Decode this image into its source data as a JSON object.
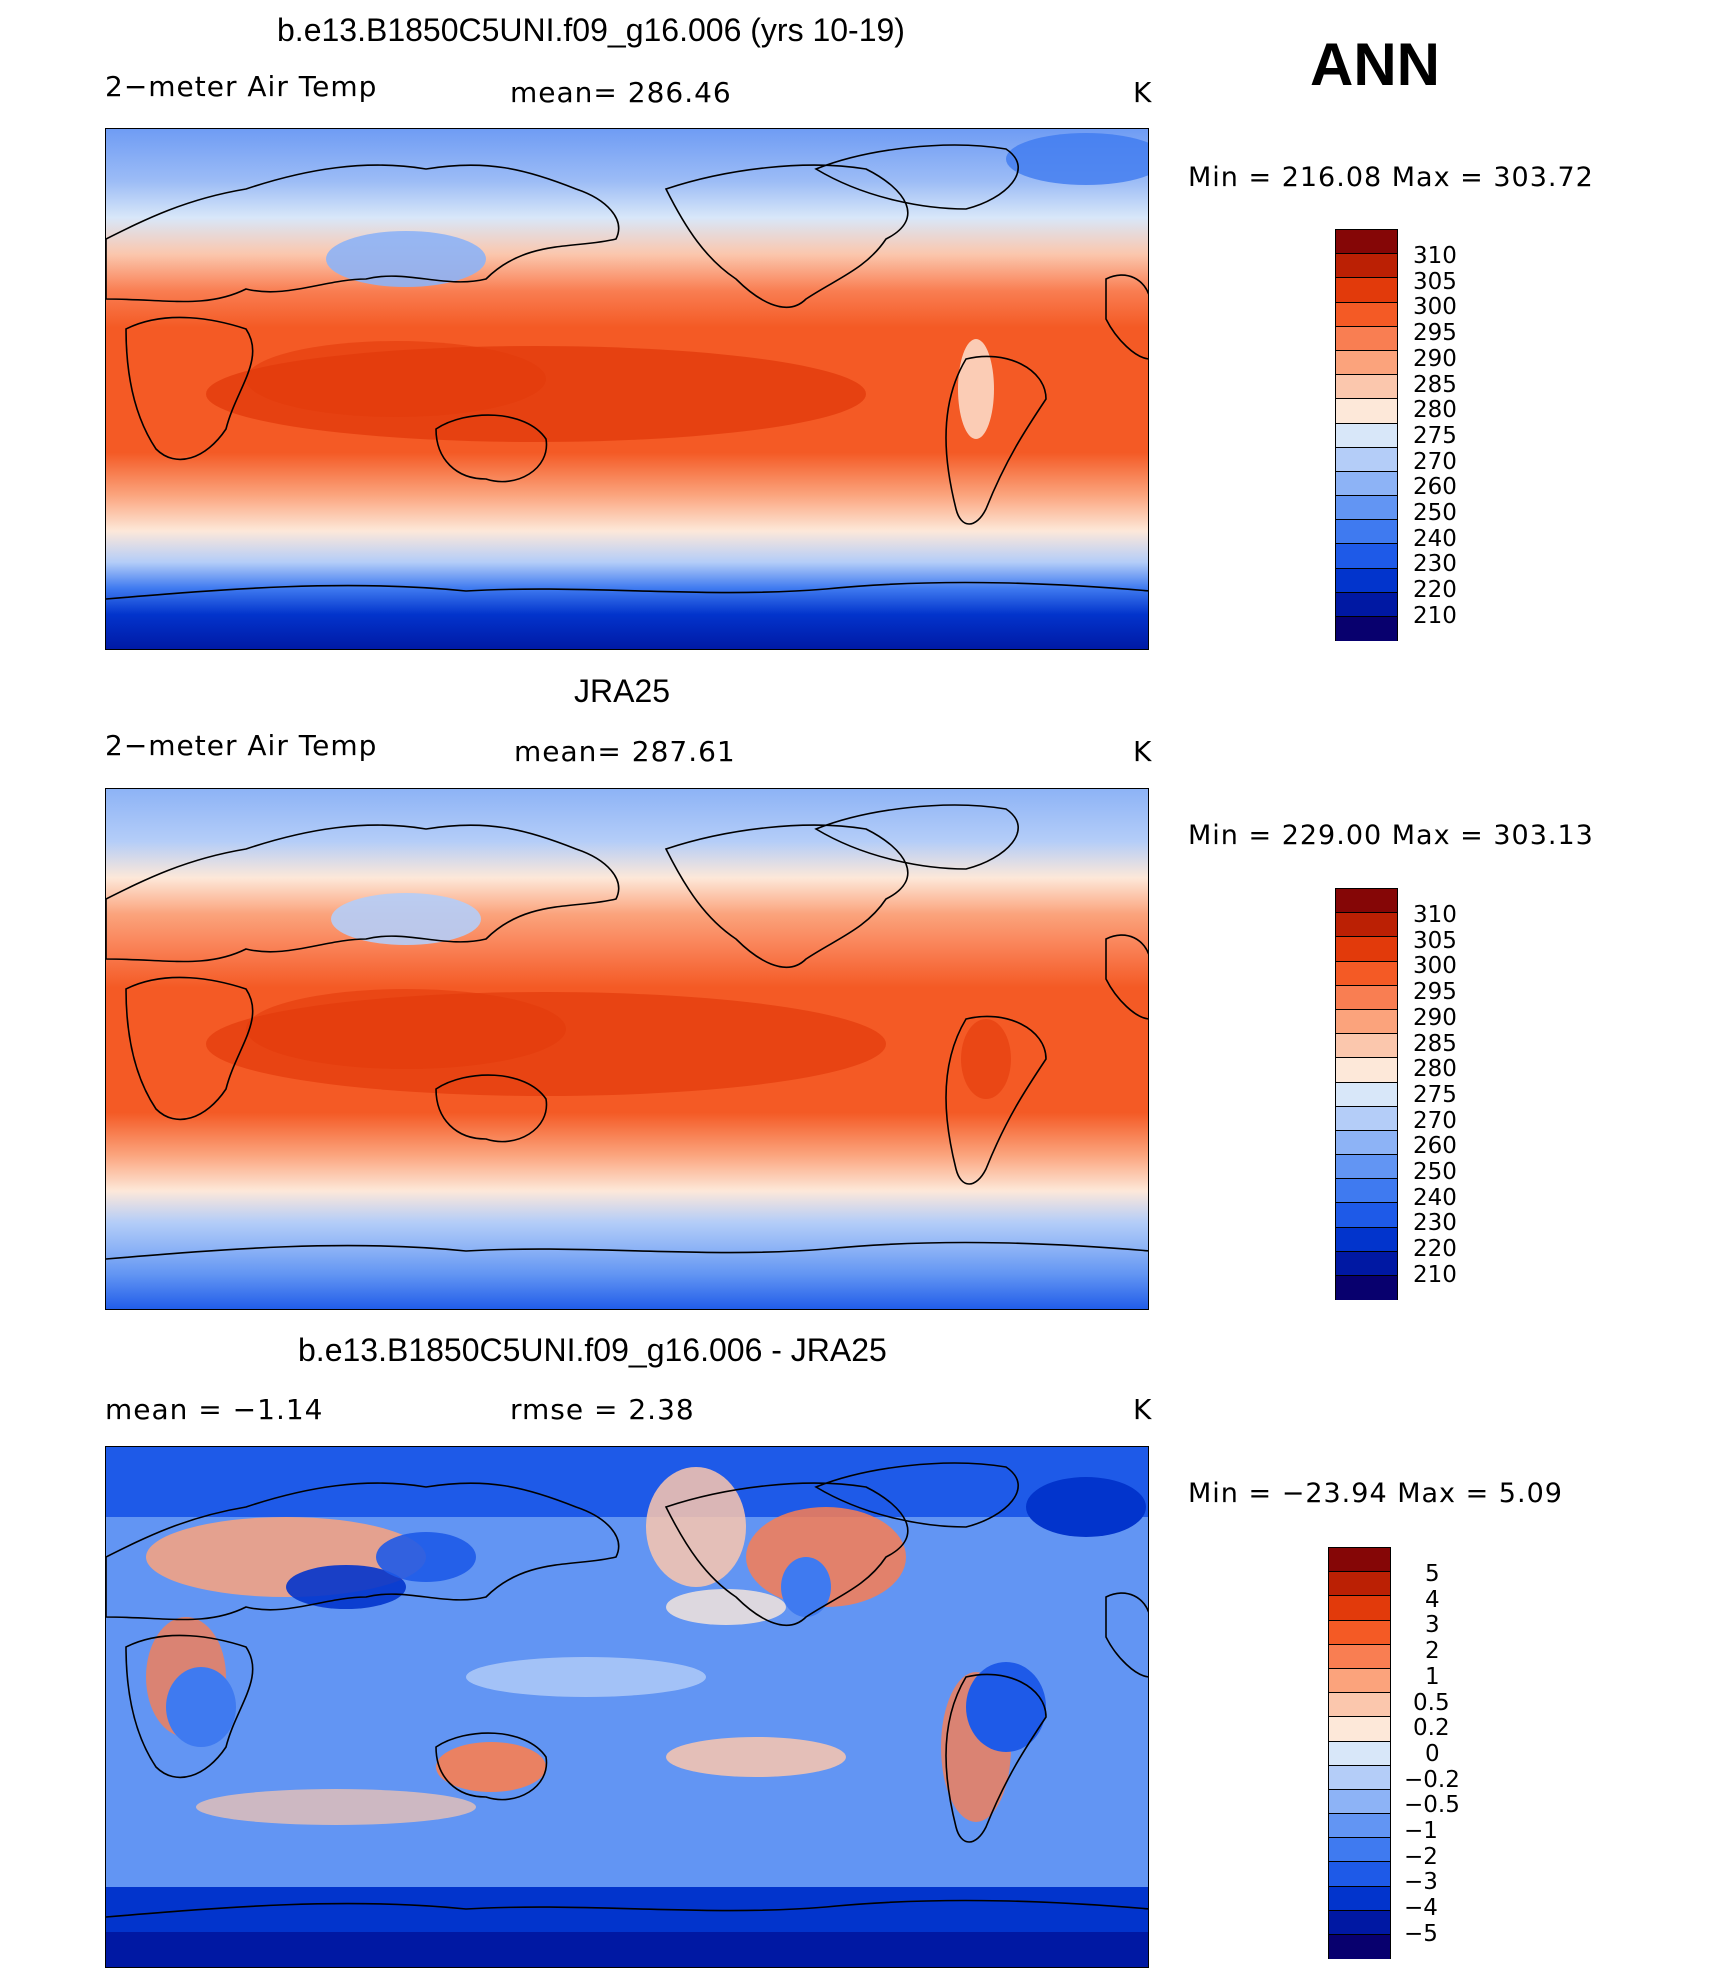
{
  "season_label": "ANN",
  "colors": {
    "abs": [
      "#08006e",
      "#0018a3",
      "#0234cc",
      "#1e5ae8",
      "#3f7af0",
      "#6295f3",
      "#8db3f6",
      "#b4cdf8",
      "#d8e7f9",
      "#fde8d9",
      "#fbc7ad",
      "#fba37c",
      "#f97e52",
      "#f45a25",
      "#e23a0b",
      "#bb2004",
      "#850606"
    ],
    "diff": [
      "#08006e",
      "#0018a3",
      "#0234cc",
      "#1e5ae8",
      "#3f7af0",
      "#6295f3",
      "#8db3f6",
      "#b4cdf8",
      "#d8e7f9",
      "#fde8d9",
      "#fbc7ad",
      "#fba37c",
      "#f97e52",
      "#f45a25",
      "#e23a0b",
      "#bb2004",
      "#850606"
    ]
  },
  "panels": [
    {
      "title": "b.e13.B1850C5UNI.f09_g16.006 (yrs 10-19)",
      "left_label": "2−meter Air Temp",
      "center_label": "mean=  286.46",
      "units": "K",
      "minmax": "Min  =  216.08  Max  =  303.72",
      "colorbar": [
        "310",
        "305",
        "300",
        "295",
        "290",
        "285",
        "280",
        "275",
        "270",
        "260",
        "250",
        "240",
        "230",
        "220",
        "210"
      ]
    },
    {
      "title": "JRA25",
      "left_label": "2−meter Air Temp",
      "center_label": "mean=  287.61",
      "units": "K",
      "minmax": "Min  =  229.00  Max  =  303.13",
      "colorbar": [
        "310",
        "305",
        "300",
        "295",
        "290",
        "285",
        "280",
        "275",
        "270",
        "260",
        "250",
        "240",
        "230",
        "220",
        "210"
      ]
    },
    {
      "title": "b.e13.B1850C5UNI.f09_g16.006 - JRA25",
      "left_label": "mean  =     −1.14",
      "center_label": "rmse  =      2.38",
      "units": "K",
      "minmax": "Min  =  −23.94  Max  =       5.09",
      "colorbar": [
        "5",
        "4",
        "3",
        "2",
        "1",
        "0.5",
        "0.2",
        "0",
        "−0.2",
        "−0.5",
        "−1",
        "−2",
        "−3",
        "−4",
        "−5"
      ]
    }
  ]
}
